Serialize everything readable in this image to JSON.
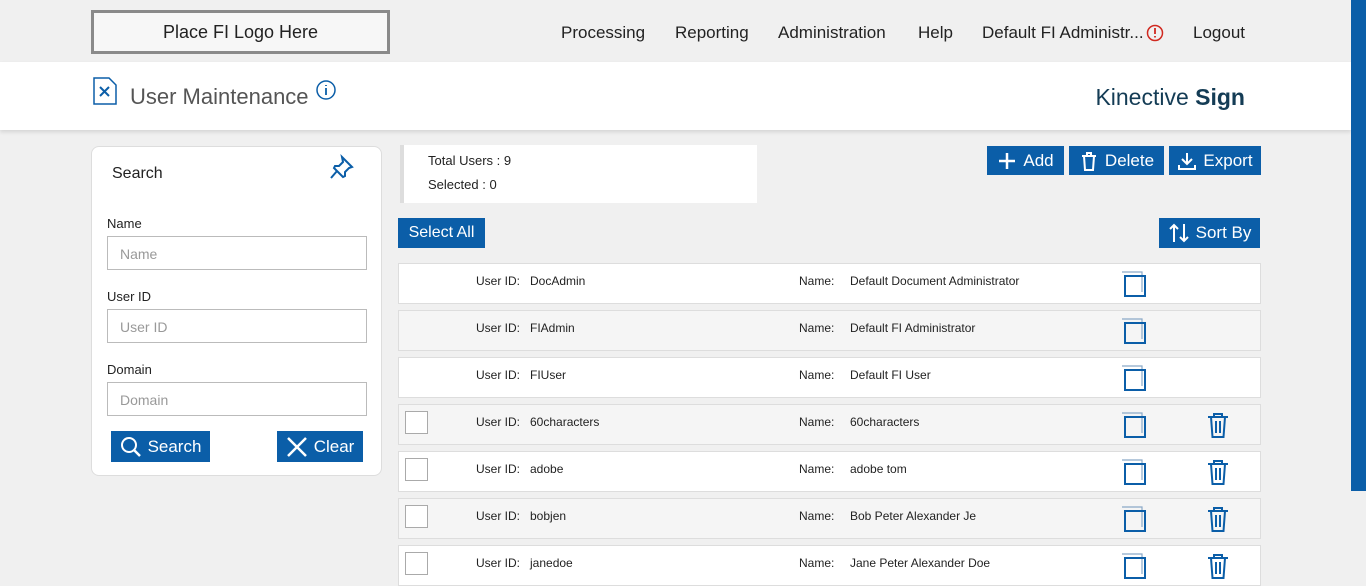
{
  "header": {
    "logo": "Place FI Logo Here",
    "nav": [
      "Processing",
      "Reporting",
      "Administration",
      "Help",
      "Default FI Administr...",
      "Logout"
    ]
  },
  "page": {
    "title": "User Maintenance",
    "brand": "Kinective",
    "brand_bold": "Sign"
  },
  "search": {
    "title": "Search",
    "fields": [
      {
        "label": "Name",
        "placeholder": "Name"
      },
      {
        "label": "User ID",
        "placeholder": "User ID"
      },
      {
        "label": "Domain",
        "placeholder": "Domain"
      }
    ],
    "search_button": "Search",
    "clear_button": "Clear"
  },
  "summary": {
    "total_label": "Total Users :",
    "total": 9,
    "selected_label": "Selected :",
    "selected": 0
  },
  "actions": [
    "Add",
    "Delete",
    "Export"
  ],
  "select_all": "Select All",
  "sort_by": "Sort By",
  "users": [
    {
      "id_label": "User ID:",
      "id": "DocAdmin",
      "name_label": "Name:",
      "name": "Default Document Administrator",
      "selectable": false
    },
    {
      "id_label": "User ID:",
      "id": "FIAdmin",
      "name_label": "Name:",
      "name": "Default FI Administrator",
      "selectable": false
    },
    {
      "id_label": "User ID:",
      "id": "FIUser",
      "name_label": "Name:",
      "name": "Default FI User",
      "selectable": false
    },
    {
      "id_label": "User ID:",
      "id": "60characters",
      "name_label": "Name:",
      "name": "60characters",
      "selectable": true
    },
    {
      "id_label": "User ID:",
      "id": "adobe",
      "name_label": "Name:",
      "name": "adobe tom",
      "selectable": true
    },
    {
      "id_label": "User ID:",
      "id": "bobjen",
      "name_label": "Name:",
      "name": "Bob Peter Alexander Je",
      "selectable": true
    },
    {
      "id_label": "User ID:",
      "id": "janedoe",
      "name_label": "Name:",
      "name": "Jane Peter Alexander Doe",
      "selectable": true
    }
  ]
}
